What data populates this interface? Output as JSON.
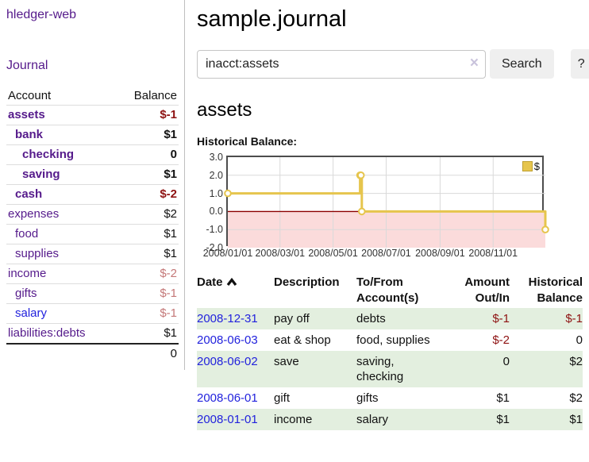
{
  "sidebar": {
    "brand": "hledger-web",
    "nav": [
      {
        "label": "Journal"
      }
    ],
    "table": {
      "account_header": "Account",
      "balance_header": "Balance"
    },
    "accounts": [
      {
        "name": "assets",
        "balance": "$-1",
        "depth": 0,
        "bold": true,
        "balance_style": "neg-strong"
      },
      {
        "name": "bank",
        "balance": "$1",
        "depth": 1,
        "bold": true,
        "balance_style": "pos"
      },
      {
        "name": "checking",
        "balance": "0",
        "depth": 2,
        "bold": true,
        "balance_style": "pos"
      },
      {
        "name": "saving",
        "balance": "$1",
        "depth": 2,
        "bold": true,
        "balance_style": "pos"
      },
      {
        "name": "cash",
        "balance": "$-2",
        "depth": 1,
        "bold": true,
        "balance_style": "neg-strong"
      },
      {
        "name": "expenses",
        "balance": "$2",
        "depth": 0,
        "bold": false,
        "balance_style": "pos"
      },
      {
        "name": "food",
        "balance": "$1",
        "depth": 1,
        "bold": false,
        "balance_style": "pos"
      },
      {
        "name": "supplies",
        "balance": "$1",
        "depth": 1,
        "bold": false,
        "balance_style": "pos"
      },
      {
        "name": "income",
        "balance": "$-2",
        "depth": 0,
        "bold": false,
        "balance_style": "neg-soft"
      },
      {
        "name": "gifts",
        "balance": "$-1",
        "depth": 1,
        "bold": false,
        "balance_style": "neg-soft"
      },
      {
        "name": "salary",
        "balance": "$-1",
        "depth": 1,
        "bold": false,
        "balance_style": "neg-soft",
        "link_style": "unvisited"
      },
      {
        "name": "liabilities:debts",
        "balance": "$1",
        "depth": 0,
        "bold": false,
        "balance_style": "pos"
      }
    ],
    "total": "0"
  },
  "main": {
    "title": "sample.journal",
    "search": {
      "value": "inacct:assets",
      "clear": "×",
      "button_label": "Search",
      "help_label": "?"
    },
    "account_title": "assets",
    "chart_title": "Historical Balance:"
  },
  "chart_data": {
    "type": "line",
    "step": true,
    "title": "Historical Balance",
    "legend": [
      {
        "label": "$",
        "color": "#E6C54D"
      }
    ],
    "x": [
      "2008-01-01",
      "2008-06-01",
      "2008-06-02",
      "2008-06-03",
      "2008-12-31"
    ],
    "values": [
      1,
      2,
      2,
      0,
      -1
    ],
    "x_range": [
      "2008-01-01",
      "2008-12-31"
    ],
    "x_tick_labels": [
      "2008/01/01",
      "2008/03/01",
      "2008/05/01",
      "2008/07/01",
      "2008/09/01",
      "2008/11/01"
    ],
    "y_ticks": [
      3.0,
      2.0,
      1.0,
      0.0,
      -1.0,
      -2.0
    ],
    "ylim": [
      -2,
      3
    ],
    "grid": true,
    "legend_position": "top-right",
    "colors": {
      "line": "#E6C54D",
      "marker_fill": "#FFFFFF",
      "negative_fill": "#FBDBDB",
      "zero_line": "#8B0000",
      "grid": "#D9D9D9",
      "border": "#4D4D4D"
    }
  },
  "register": {
    "headers": [
      {
        "label": "Date",
        "sort": "asc"
      },
      {
        "label": "Description"
      },
      {
        "label": "To/From\nAccount(s)"
      },
      {
        "label": "Amount\nOut/In",
        "align": "right"
      },
      {
        "label": "Historical\nBalance",
        "align": "right"
      }
    ],
    "rows": [
      {
        "date": "2008-12-31",
        "description": "pay off",
        "accounts": "debts",
        "amount": "$-1",
        "balance": "$-1"
      },
      {
        "date": "2008-06-03",
        "description": "eat & shop",
        "accounts": "food, supplies",
        "amount": "$-2",
        "balance": "0"
      },
      {
        "date": "2008-06-02",
        "description": "save",
        "accounts": "saving, checking",
        "amount": "0",
        "balance": "$2"
      },
      {
        "date": "2008-06-01",
        "description": "gift",
        "accounts": "gifts",
        "amount": "$1",
        "balance": "$2"
      },
      {
        "date": "2008-01-01",
        "description": "income",
        "accounts": "salary",
        "amount": "$1",
        "balance": "$1"
      }
    ]
  }
}
